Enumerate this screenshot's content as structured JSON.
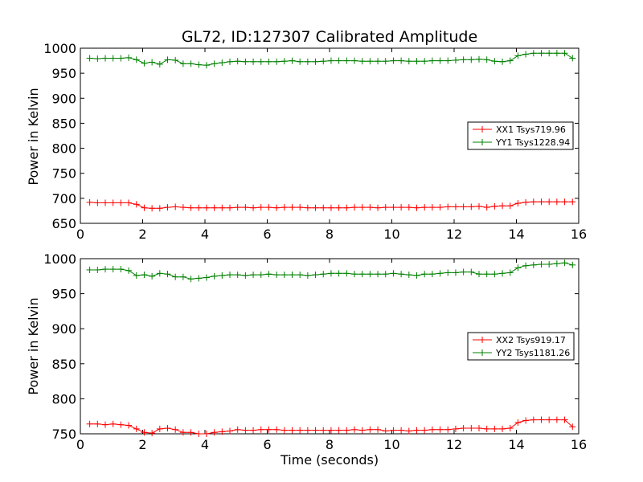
{
  "title": "GL72, ID:127307 Calibrated Amplitude",
  "colors": {
    "red": "#ff0000",
    "green": "#008000"
  },
  "chart_data": [
    {
      "type": "line",
      "ylabel": "Power in Kelvin",
      "xlabel": "",
      "xlim": [
        0,
        16
      ],
      "ylim": [
        650,
        1000
      ],
      "xticks": [
        0,
        2,
        4,
        6,
        8,
        10,
        12,
        14,
        16
      ],
      "yticks": [
        650,
        700,
        750,
        800,
        850,
        900,
        950,
        1000
      ],
      "legend_position": "center-right",
      "x": [
        0.3,
        0.55,
        0.8,
        1.05,
        1.3,
        1.55,
        1.8,
        2.05,
        2.3,
        2.55,
        2.8,
        3.05,
        3.3,
        3.55,
        3.8,
        4.05,
        4.3,
        4.55,
        4.8,
        5.05,
        5.3,
        5.55,
        5.8,
        6.05,
        6.3,
        6.55,
        6.8,
        7.05,
        7.3,
        7.55,
        7.8,
        8.05,
        8.3,
        8.55,
        8.8,
        9.05,
        9.3,
        9.55,
        9.8,
        10.05,
        10.3,
        10.55,
        10.8,
        11.05,
        11.3,
        11.55,
        11.8,
        12.05,
        12.3,
        12.55,
        12.8,
        13.05,
        13.3,
        13.55,
        13.8,
        14.05,
        14.3,
        14.55,
        14.8,
        15.05,
        15.3,
        15.55,
        15.8
      ],
      "series": [
        {
          "name": "XX1 Tsys719.96",
          "color": "#ff0000",
          "values": [
            692,
            691,
            691,
            691,
            691,
            691,
            688,
            681,
            680,
            680,
            682,
            683,
            682,
            681,
            681,
            681,
            681,
            681,
            681,
            682,
            682,
            681,
            682,
            682,
            681,
            682,
            682,
            682,
            681,
            681,
            681,
            681,
            681,
            681,
            682,
            682,
            682,
            681,
            682,
            682,
            682,
            682,
            681,
            682,
            682,
            682,
            683,
            683,
            683,
            683,
            684,
            682,
            684,
            685,
            685,
            690,
            692,
            693,
            693,
            693,
            693,
            693,
            693
          ]
        },
        {
          "name": "YY1 Tsys1228.94",
          "color": "#008000",
          "values": [
            980,
            979,
            980,
            980,
            980,
            981,
            977,
            970,
            972,
            968,
            977,
            976,
            969,
            969,
            967,
            966,
            969,
            971,
            973,
            974,
            973,
            973,
            973,
            973,
            973,
            974,
            975,
            973,
            973,
            973,
            974,
            975,
            975,
            975,
            975,
            974,
            974,
            974,
            974,
            975,
            975,
            974,
            974,
            974,
            975,
            975,
            975,
            976,
            977,
            977,
            978,
            977,
            974,
            973,
            975,
            985,
            988,
            990,
            990,
            990,
            990,
            990,
            980
          ]
        }
      ]
    },
    {
      "type": "line",
      "ylabel": "Power in Kelvin",
      "xlabel": "Time (seconds)",
      "xlim": [
        0,
        16
      ],
      "ylim": [
        750,
        1000
      ],
      "xticks": [
        0,
        2,
        4,
        6,
        8,
        10,
        12,
        14,
        16
      ],
      "yticks": [
        750,
        800,
        850,
        900,
        950,
        1000
      ],
      "legend_position": "center-right",
      "x": [
        0.3,
        0.55,
        0.8,
        1.05,
        1.3,
        1.55,
        1.8,
        2.05,
        2.3,
        2.55,
        2.8,
        3.05,
        3.3,
        3.55,
        3.8,
        4.05,
        4.3,
        4.55,
        4.8,
        5.05,
        5.3,
        5.55,
        5.8,
        6.05,
        6.3,
        6.55,
        6.8,
        7.05,
        7.3,
        7.55,
        7.8,
        8.05,
        8.3,
        8.55,
        8.8,
        9.05,
        9.3,
        9.55,
        9.8,
        10.05,
        10.3,
        10.55,
        10.8,
        11.05,
        11.3,
        11.55,
        11.8,
        12.05,
        12.3,
        12.55,
        12.8,
        13.05,
        13.3,
        13.55,
        13.8,
        14.05,
        14.3,
        14.55,
        14.8,
        15.05,
        15.3,
        15.55,
        15.8
      ],
      "series": [
        {
          "name": "XX2 Tsys919.17",
          "color": "#ff0000",
          "values": [
            764,
            764,
            763,
            764,
            763,
            762,
            757,
            752,
            751,
            757,
            758,
            756,
            752,
            752,
            750,
            750,
            752,
            753,
            754,
            756,
            755,
            755,
            756,
            756,
            756,
            755,
            755,
            755,
            755,
            755,
            755,
            755,
            755,
            755,
            756,
            755,
            756,
            756,
            754,
            755,
            755,
            754,
            755,
            755,
            756,
            756,
            756,
            757,
            758,
            758,
            758,
            757,
            757,
            757,
            758,
            766,
            769,
            770,
            770,
            770,
            770,
            770,
            760
          ]
        },
        {
          "name": "YY2 Tsys1181.26",
          "color": "#008000",
          "values": [
            984,
            984,
            985,
            985,
            985,
            983,
            976,
            977,
            975,
            979,
            978,
            974,
            974,
            971,
            972,
            973,
            975,
            976,
            977,
            977,
            976,
            977,
            977,
            978,
            977,
            977,
            977,
            977,
            976,
            977,
            978,
            979,
            979,
            979,
            978,
            978,
            978,
            978,
            978,
            979,
            978,
            977,
            976,
            978,
            978,
            979,
            980,
            980,
            981,
            981,
            978,
            978,
            978,
            979,
            980,
            987,
            990,
            991,
            992,
            992,
            993,
            994,
            991
          ]
        }
      ]
    }
  ]
}
